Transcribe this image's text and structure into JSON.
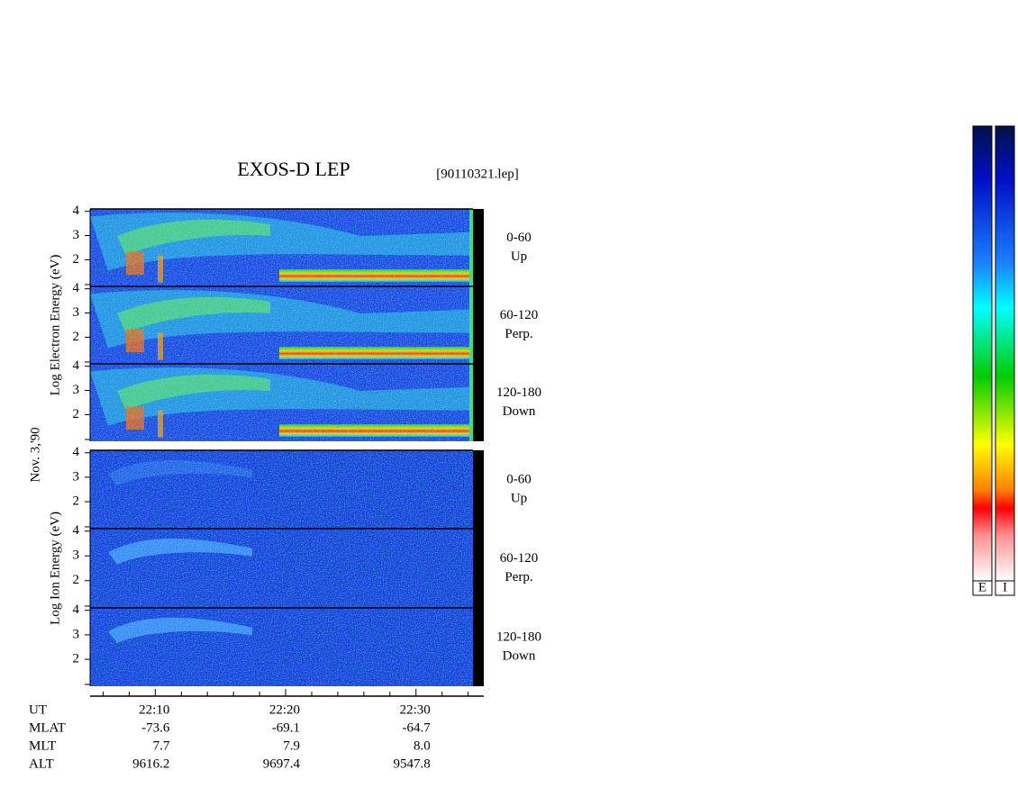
{
  "title": "EXOS-D LEP",
  "file": "[90110321.lep]",
  "date": "Nov. 3,'90",
  "chart_data": {
    "type": "spectrogram",
    "groups": [
      {
        "ylabel": "Log Electron Energy (eV)",
        "panels": [
          {
            "angle": "0-60",
            "direction": "Up"
          },
          {
            "angle": "60-120",
            "direction": "Perp."
          },
          {
            "angle": "120-180",
            "direction": "Down"
          }
        ]
      },
      {
        "ylabel": "Log Ion Energy (eV)",
        "panels": [
          {
            "angle": "0-60",
            "direction": "Up"
          },
          {
            "angle": "60-120",
            "direction": "Perp."
          },
          {
            "angle": "120-180",
            "direction": "Down"
          }
        ]
      }
    ],
    "ylim": [
      0.9,
      4.1
    ],
    "yticks": [
      2,
      3,
      4
    ],
    "xlim": [
      1325,
      1355.2
    ],
    "xticks": [
      {
        "value": 1330,
        "label": "22:10"
      },
      {
        "value": 1340,
        "label": "22:20"
      },
      {
        "value": 1350,
        "label": "22:30"
      }
    ],
    "xminor": [
      1326,
      1328,
      1332,
      1334,
      1336,
      1338,
      1342,
      1344,
      1346,
      1348,
      1352,
      1354
    ]
  },
  "ephemeris": {
    "x_label": "UT",
    "row_labels": [
      "MLAT",
      "MLT",
      "ALT"
    ],
    "rows": [
      [
        "-73.6",
        "-69.1",
        "-64.7"
      ],
      [
        "7.7",
        "7.9",
        "8.0"
      ],
      [
        "9616.2",
        "9697.4",
        "9547.8"
      ]
    ]
  },
  "colorbar": {
    "labels": [
      "E",
      "I"
    ]
  }
}
